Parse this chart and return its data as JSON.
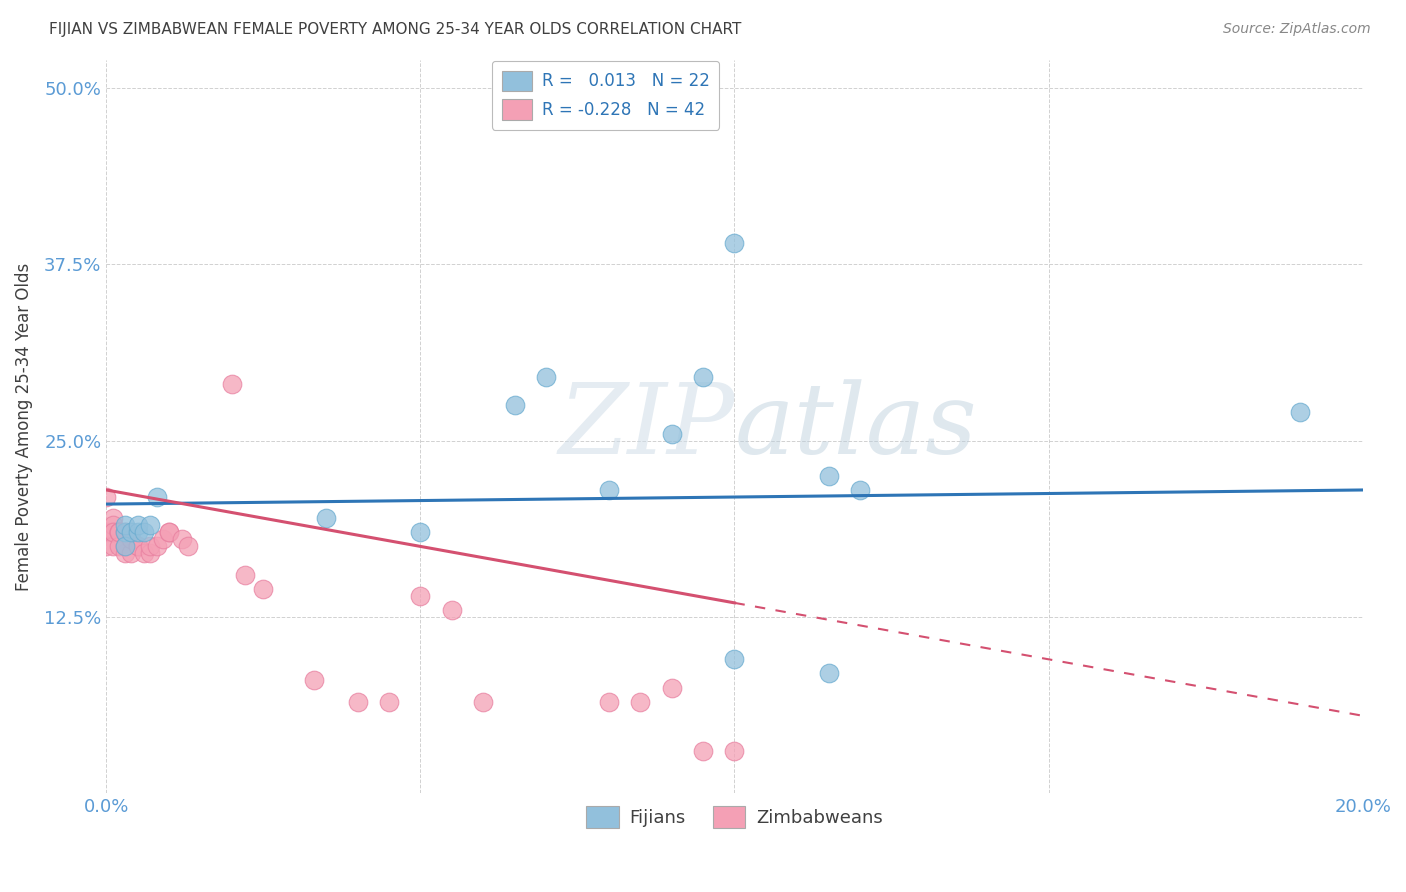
{
  "title": "FIJIAN VS ZIMBABWEAN FEMALE POVERTY AMONG 25-34 YEAR OLDS CORRELATION CHART",
  "source": "Source: ZipAtlas.com",
  "ylabel_label": "Female Poverty Among 25-34 Year Olds",
  "xlim": [
    0.0,
    0.2
  ],
  "ylim": [
    0.0,
    0.52
  ],
  "fijian_color": "#92C0DC",
  "zimbabwean_color": "#F4A0B5",
  "fijian_edge": "#6AACD0",
  "zimbabwean_edge": "#E880A0",
  "fijian_r": 0.013,
  "fijian_n": 22,
  "zimbabwean_r": -0.228,
  "zimbabwean_n": 42,
  "legend_label1": "Fijians",
  "legend_label2": "Zimbabweans",
  "watermark_zip": "ZIP",
  "watermark_atlas": "atlas",
  "regression_blue": "#2E75B6",
  "regression_pink": "#D45070",
  "fijian_x": [
    0.003,
    0.003,
    0.003,
    0.004,
    0.005,
    0.005,
    0.006,
    0.007,
    0.008,
    0.035,
    0.05,
    0.065,
    0.07,
    0.08,
    0.09,
    0.095,
    0.1,
    0.115,
    0.12,
    0.1,
    0.115,
    0.19
  ],
  "fijian_y": [
    0.185,
    0.175,
    0.19,
    0.185,
    0.185,
    0.19,
    0.185,
    0.19,
    0.21,
    0.195,
    0.185,
    0.275,
    0.295,
    0.215,
    0.255,
    0.295,
    0.39,
    0.225,
    0.215,
    0.095,
    0.085,
    0.27
  ],
  "zimbabwean_x": [
    0.0,
    0.0,
    0.0,
    0.001,
    0.001,
    0.001,
    0.001,
    0.001,
    0.002,
    0.002,
    0.002,
    0.002,
    0.003,
    0.003,
    0.003,
    0.004,
    0.004,
    0.005,
    0.005,
    0.006,
    0.007,
    0.007,
    0.008,
    0.009,
    0.01,
    0.01,
    0.012,
    0.013,
    0.02,
    0.022,
    0.025,
    0.033,
    0.04,
    0.045,
    0.05,
    0.055,
    0.06,
    0.08,
    0.085,
    0.09,
    0.095,
    0.1
  ],
  "zimbabwean_y": [
    0.21,
    0.185,
    0.175,
    0.195,
    0.185,
    0.19,
    0.175,
    0.185,
    0.185,
    0.185,
    0.175,
    0.185,
    0.17,
    0.175,
    0.185,
    0.17,
    0.18,
    0.175,
    0.175,
    0.17,
    0.17,
    0.175,
    0.175,
    0.18,
    0.185,
    0.185,
    0.18,
    0.175,
    0.29,
    0.155,
    0.145,
    0.08,
    0.065,
    0.065,
    0.14,
    0.13,
    0.065,
    0.065,
    0.065,
    0.075,
    0.03,
    0.03
  ],
  "background_color": "#FFFFFF",
  "grid_color": "#CCCCCC",
  "tick_color": "#5B9BD5",
  "title_color": "#404040",
  "title_fontsize": 11
}
